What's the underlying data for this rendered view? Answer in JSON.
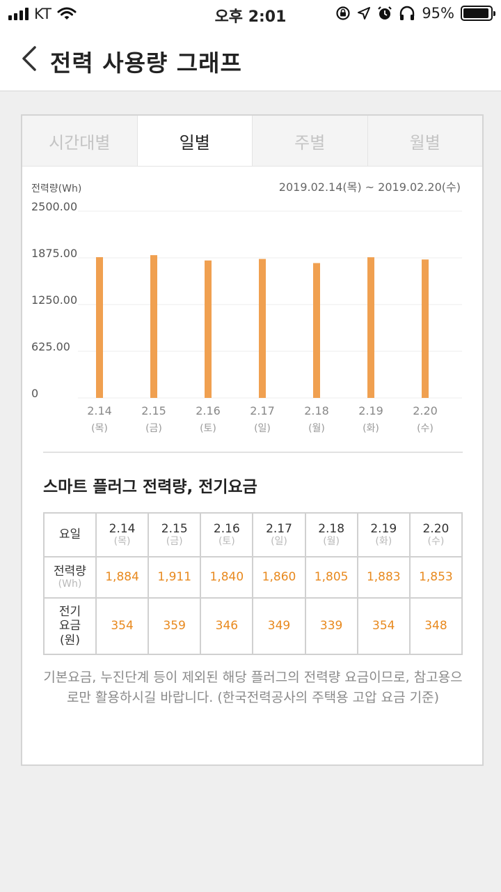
{
  "status": {
    "carrier": "KT",
    "time": "오후 2:01",
    "battery": "95%",
    "battery_level": 0.95,
    "icons": [
      "signal-icon",
      "wifi-icon",
      "rotation-lock-icon",
      "location-icon",
      "alarm-icon",
      "headphones-icon",
      "battery-icon"
    ]
  },
  "header": {
    "title": "전력 사용량 그래프"
  },
  "tabs": [
    {
      "label": "시간대별",
      "active": false
    },
    {
      "label": "일별",
      "active": true
    },
    {
      "label": "주별",
      "active": false
    },
    {
      "label": "월별",
      "active": false
    }
  ],
  "chart_data": {
    "type": "bar",
    "ylabel": "전력량(Wh)",
    "date_range": "2019.02.14(목) ~ 2019.02.20(수)",
    "categories": [
      "2.14",
      "2.15",
      "2.16",
      "2.17",
      "2.18",
      "2.19",
      "2.20"
    ],
    "category_days": [
      "(목)",
      "(금)",
      "(토)",
      "(일)",
      "(월)",
      "(화)",
      "(수)"
    ],
    "values": [
      1884,
      1911,
      1840,
      1860,
      1805,
      1883,
      1853
    ],
    "ylim": [
      0,
      2500
    ],
    "yticks": [
      "2500.00",
      "1875.00",
      "1250.00",
      "625.00",
      "0"
    ],
    "ytick_values": [
      2500,
      1875,
      1250,
      625,
      0
    ],
    "bar_color": "#f0a050",
    "grid": true
  },
  "section": {
    "title": "스마트 플러그 전력량, 전기요금"
  },
  "table": {
    "day_header": "요일",
    "energy_header": "전력량",
    "energy_unit": "(Wh)",
    "cost_header_line1": "전기",
    "cost_header_line2": "요금",
    "cost_unit": "(원)",
    "days": [
      {
        "date": "2.14",
        "day": "(목)",
        "energy": "1,884",
        "cost": "354"
      },
      {
        "date": "2.15",
        "day": "(금)",
        "energy": "1,911",
        "cost": "359"
      },
      {
        "date": "2.16",
        "day": "(토)",
        "energy": "1,840",
        "cost": "346"
      },
      {
        "date": "2.17",
        "day": "(일)",
        "energy": "1,860",
        "cost": "349"
      },
      {
        "date": "2.18",
        "day": "(월)",
        "energy": "1,805",
        "cost": "339"
      },
      {
        "date": "2.19",
        "day": "(화)",
        "energy": "1,883",
        "cost": "354"
      },
      {
        "date": "2.20",
        "day": "(수)",
        "energy": "1,853",
        "cost": "348"
      }
    ]
  },
  "note": "기본요금, 누진단계 등이 제외된 해당 플러그의 전력량 요금이므로, 참고용으로만 활용하시길 바랍니다. (한국전력공사의 주택용 고압 요금 기준)"
}
